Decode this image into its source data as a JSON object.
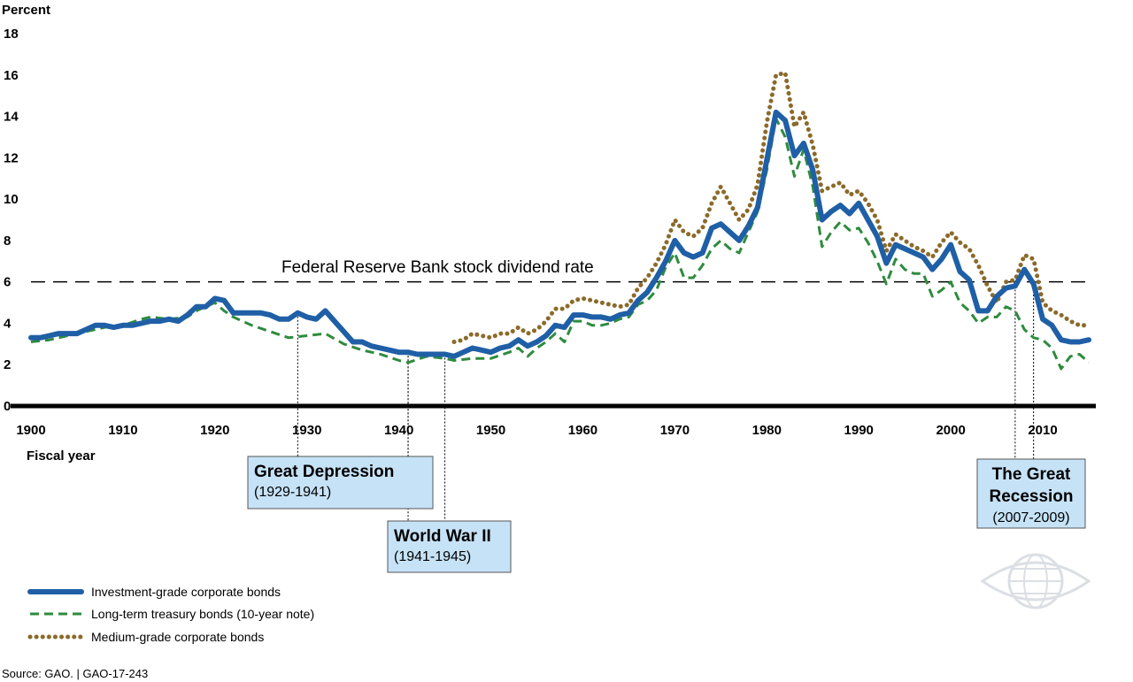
{
  "chart_data": {
    "type": "line",
    "ylabel": "Percent",
    "xlabel": "Fiscal year",
    "xlim": [
      1900,
      2015
    ],
    "ylim": [
      0,
      18
    ],
    "yticks": [
      0,
      2,
      4,
      6,
      8,
      10,
      12,
      14,
      16,
      18
    ],
    "xticks": [
      1900,
      1910,
      1920,
      1930,
      1940,
      1950,
      1960,
      1970,
      1980,
      1990,
      2000,
      2010
    ],
    "reference_line": {
      "label": "Federal Reserve Bank stock dividend rate",
      "value": 6
    },
    "annotations": [
      {
        "title": "Great Depression",
        "dates": "(1929-1941)",
        "years": [
          1929,
          1941
        ]
      },
      {
        "title": "World War II",
        "dates": "(1941-1945)",
        "years": [
          1941,
          1945
        ]
      },
      {
        "title": "The Great Recession",
        "dates": "(2007-2009)",
        "years": [
          2007,
          2009
        ]
      }
    ],
    "series": [
      {
        "name": "Investment-grade corporate bonds",
        "color": "#1f5fa6",
        "style": "solid",
        "x": [
          1900,
          1901,
          1902,
          1903,
          1904,
          1905,
          1906,
          1907,
          1908,
          1909,
          1910,
          1911,
          1912,
          1913,
          1914,
          1915,
          1916,
          1917,
          1918,
          1919,
          1920,
          1921,
          1922,
          1923,
          1924,
          1925,
          1926,
          1927,
          1928,
          1929,
          1930,
          1931,
          1932,
          1933,
          1934,
          1935,
          1936,
          1937,
          1938,
          1939,
          1940,
          1941,
          1942,
          1943,
          1944,
          1945,
          1946,
          1947,
          1948,
          1949,
          1950,
          1951,
          1952,
          1953,
          1954,
          1955,
          1956,
          1957,
          1958,
          1959,
          1960,
          1961,
          1962,
          1963,
          1964,
          1965,
          1966,
          1967,
          1968,
          1969,
          1970,
          1971,
          1972,
          1973,
          1974,
          1975,
          1976,
          1977,
          1978,
          1979,
          1980,
          1981,
          1982,
          1983,
          1984,
          1985,
          1986,
          1987,
          1988,
          1989,
          1990,
          1991,
          1992,
          1993,
          1994,
          1995,
          1996,
          1997,
          1998,
          1999,
          2000,
          2001,
          2002,
          2003,
          2004,
          2005,
          2006,
          2007,
          2008,
          2009,
          2010,
          2011,
          2012,
          2013,
          2014,
          2015
        ],
        "values": [
          3.3,
          3.3,
          3.4,
          3.5,
          3.5,
          3.5,
          3.7,
          3.9,
          3.9,
          3.8,
          3.9,
          3.9,
          4.0,
          4.1,
          4.1,
          4.2,
          4.1,
          4.4,
          4.8,
          4.8,
          5.2,
          5.1,
          4.5,
          4.5,
          4.5,
          4.5,
          4.4,
          4.2,
          4.2,
          4.5,
          4.3,
          4.2,
          4.6,
          4.1,
          3.6,
          3.1,
          3.1,
          2.9,
          2.8,
          2.7,
          2.6,
          2.6,
          2.5,
          2.5,
          2.5,
          2.5,
          2.4,
          2.6,
          2.8,
          2.7,
          2.6,
          2.8,
          2.9,
          3.2,
          2.9,
          3.1,
          3.4,
          3.9,
          3.8,
          4.4,
          4.4,
          4.3,
          4.3,
          4.2,
          4.4,
          4.5,
          5.1,
          5.5,
          6.2,
          7.0,
          8.0,
          7.4,
          7.2,
          7.4,
          8.6,
          8.8,
          8.4,
          8.0,
          8.7,
          9.6,
          11.9,
          14.2,
          13.8,
          12.1,
          12.7,
          11.4,
          9.0,
          9.4,
          9.7,
          9.3,
          9.8,
          9.0,
          8.2,
          6.9,
          7.8,
          7.6,
          7.4,
          7.2,
          6.6,
          7.1,
          7.8,
          6.5,
          6.1,
          4.6,
          4.6,
          5.3,
          5.7,
          5.8,
          6.6,
          5.9,
          4.2,
          3.9,
          3.2,
          3.1,
          3.1,
          3.2
        ]
      },
      {
        "name": "Long-term treasury bonds (10-year note)",
        "color": "#2e8b3e",
        "style": "dashed",
        "x": [
          1900,
          1902,
          1904,
          1906,
          1908,
          1910,
          1912,
          1913,
          1915,
          1917,
          1918,
          1919,
          1920,
          1921,
          1922,
          1924,
          1926,
          1928,
          1930,
          1932,
          1934,
          1936,
          1938,
          1940,
          1941,
          1943,
          1945,
          1946,
          1948,
          1950,
          1952,
          1953,
          1954,
          1955,
          1956,
          1957,
          1958,
          1959,
          1960,
          1961,
          1962,
          1963,
          1964,
          1965,
          1966,
          1967,
          1968,
          1969,
          1970,
          1971,
          1972,
          1973,
          1974,
          1975,
          1976,
          1977,
          1978,
          1979,
          1980,
          1981,
          1982,
          1983,
          1984,
          1985,
          1986,
          1987,
          1988,
          1989,
          1990,
          1991,
          1992,
          1993,
          1994,
          1995,
          1996,
          1997,
          1998,
          1999,
          2000,
          2001,
          2002,
          2003,
          2004,
          2005,
          2006,
          2007,
          2008,
          2009,
          2010,
          2011,
          2012,
          2013,
          2014,
          2015
        ],
        "values": [
          3.1,
          3.2,
          3.4,
          3.6,
          3.8,
          3.9,
          4.2,
          4.3,
          4.2,
          4.3,
          4.6,
          4.8,
          5.0,
          4.6,
          4.3,
          3.9,
          3.6,
          3.3,
          3.4,
          3.5,
          3.0,
          2.7,
          2.5,
          2.2,
          2.1,
          2.4,
          2.3,
          2.2,
          2.3,
          2.3,
          2.6,
          2.8,
          2.4,
          2.8,
          3.1,
          3.5,
          3.1,
          4.1,
          4.1,
          3.9,
          3.9,
          4.0,
          4.2,
          4.3,
          4.9,
          5.1,
          5.6,
          6.7,
          7.4,
          6.2,
          6.2,
          6.8,
          7.6,
          8.0,
          7.6,
          7.4,
          8.4,
          9.4,
          11.4,
          13.9,
          13.0,
          11.1,
          12.4,
          10.6,
          7.7,
          8.4,
          8.9,
          8.5,
          8.6,
          7.9,
          7.0,
          5.9,
          7.1,
          6.6,
          6.4,
          6.4,
          5.3,
          5.6,
          6.0,
          5.0,
          4.6,
          4.0,
          4.3,
          4.3,
          4.8,
          4.6,
          3.7,
          3.3,
          3.2,
          2.8,
          1.8,
          2.4,
          2.5,
          2.1
        ]
      },
      {
        "name": "Medium-grade corporate bonds",
        "color": "#8b6a2a",
        "style": "dotted",
        "x": [
          1946,
          1947,
          1948,
          1949,
          1950,
          1951,
          1952,
          1953,
          1954,
          1955,
          1956,
          1957,
          1958,
          1959,
          1960,
          1961,
          1962,
          1963,
          1964,
          1965,
          1966,
          1967,
          1968,
          1969,
          1970,
          1971,
          1972,
          1973,
          1974,
          1975,
          1976,
          1977,
          1978,
          1979,
          1980,
          1981,
          1982,
          1983,
          1984,
          1985,
          1986,
          1987,
          1988,
          1989,
          1990,
          1991,
          1992,
          1993,
          1994,
          1995,
          1996,
          1997,
          1998,
          1999,
          2000,
          2001,
          2002,
          2003,
          2004,
          2005,
          2006,
          2007,
          2008,
          2009,
          2010,
          2011,
          2012,
          2013,
          2014,
          2015
        ],
        "values": [
          3.1,
          3.2,
          3.5,
          3.4,
          3.3,
          3.5,
          3.5,
          3.8,
          3.5,
          3.7,
          4.1,
          4.7,
          4.7,
          5.1,
          5.2,
          5.1,
          5.0,
          4.9,
          4.8,
          4.9,
          5.7,
          6.2,
          6.9,
          7.8,
          9.0,
          8.4,
          8.2,
          8.6,
          9.8,
          10.6,
          9.8,
          9.0,
          9.5,
          10.7,
          13.7,
          16.0,
          16.1,
          13.5,
          14.2,
          12.6,
          10.4,
          10.6,
          10.8,
          10.2,
          10.4,
          9.8,
          9.0,
          7.5,
          8.3,
          8.0,
          7.7,
          7.5,
          7.2,
          7.9,
          8.4,
          7.9,
          7.6,
          6.8,
          5.8,
          5.0,
          6.0,
          6.1,
          7.3,
          7.1,
          5.0,
          4.6,
          4.4,
          4.1,
          3.9,
          3.9
        ]
      }
    ],
    "legend_placement": "bottom-left"
  },
  "source_text": "Source: GAO.  |  GAO-17-243"
}
